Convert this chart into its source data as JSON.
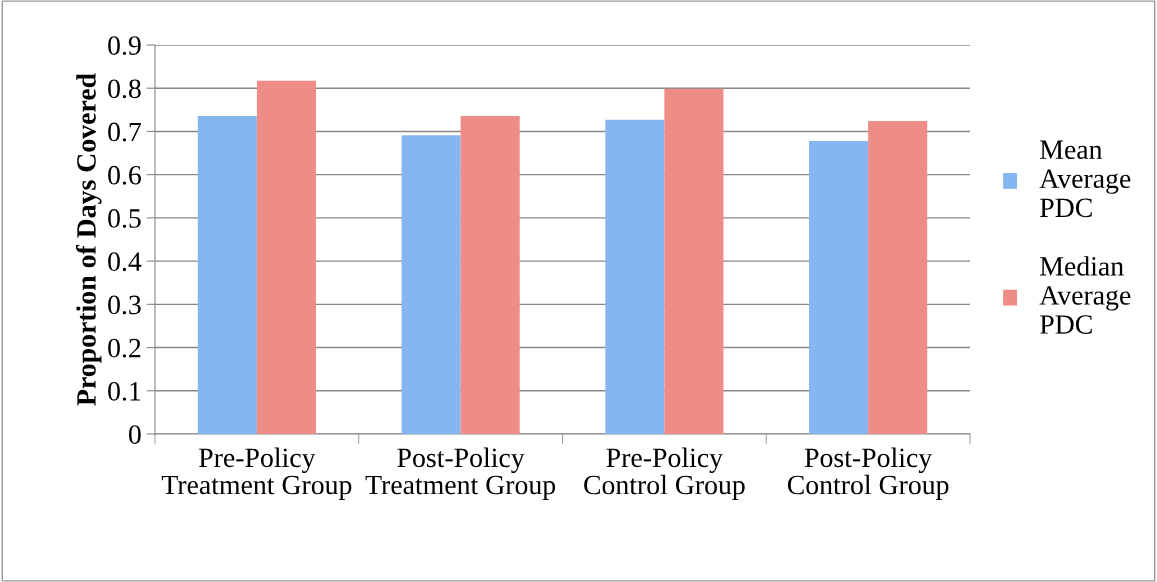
{
  "chart_data": {
    "type": "bar",
    "ylabel": "Proportion of Days Covered",
    "categories": [
      "Pre-Policy Treatment Group",
      "Post-Policy Treatment Group",
      "Pre-Policy Control Group",
      "Post-Policy Control Group"
    ],
    "series": [
      {
        "name": "Mean Average PDC",
        "color": "#86b6f0",
        "values": [
          0.736,
          0.691,
          0.727,
          0.678
        ]
      },
      {
        "name": "Median Average PDC",
        "color": "#ee8c86",
        "values": [
          0.817,
          0.736,
          0.799,
          0.724
        ]
      }
    ],
    "ylim": [
      0,
      0.9
    ],
    "yticks": [
      0,
      0.1,
      0.2,
      0.3,
      0.4,
      0.5,
      0.6,
      0.7,
      0.8,
      0.9
    ],
    "grid": "y",
    "legend": "right"
  }
}
